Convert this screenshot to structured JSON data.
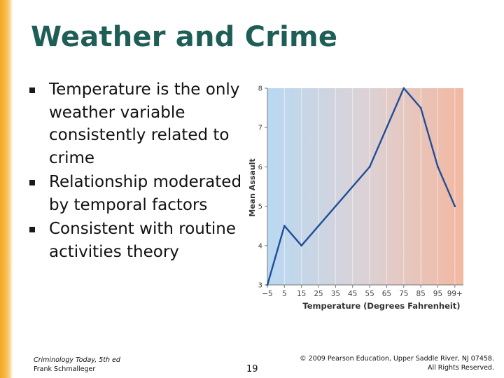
{
  "slide": {
    "title": "Weather and Crime",
    "bullets": [
      "Temperature is the only weather variable consistently related to crime",
      "Relationship moderated by temporal factors",
      "Consistent with routine activities theory"
    ]
  },
  "footer": {
    "book_title": "Criminology Today, 5th ed",
    "author": "Frank Schmalleger",
    "page_number": "19",
    "copyright_line1": "© 2009 Pearson Education, Upper Saddle River, NJ 07458.",
    "copyright_line2": "All Rights Reserved."
  },
  "colors": {
    "title": "#1f5e57",
    "line": "#1f4e99",
    "cold": "#b9d8f2",
    "hot": "#f2b8a0"
  },
  "chart_data": {
    "type": "line",
    "title": "",
    "xlabel": "Temperature (Degrees Fahrenheit)",
    "ylabel": "Mean Assault",
    "categories": [
      "−5",
      "5",
      "15",
      "25",
      "35",
      "45",
      "55",
      "65",
      "75",
      "85",
      "95",
      "99+"
    ],
    "values": [
      3.0,
      4.5,
      4.0,
      null,
      null,
      null,
      6.0,
      null,
      8.0,
      7.5,
      6.0,
      5.0
    ],
    "series": [
      {
        "name": "Mean Assault",
        "x": [
          0,
          1,
          2,
          6,
          8,
          9,
          10,
          11
        ],
        "y": [
          3.0,
          4.5,
          4.0,
          6.0,
          8.0,
          7.5,
          6.0,
          5.0
        ]
      }
    ],
    "yticks": [
      "3",
      "4",
      "5",
      "6",
      "7",
      "8"
    ],
    "ylim": [
      3,
      8
    ],
    "grid": true,
    "background": "gradient cold-to-hot"
  }
}
